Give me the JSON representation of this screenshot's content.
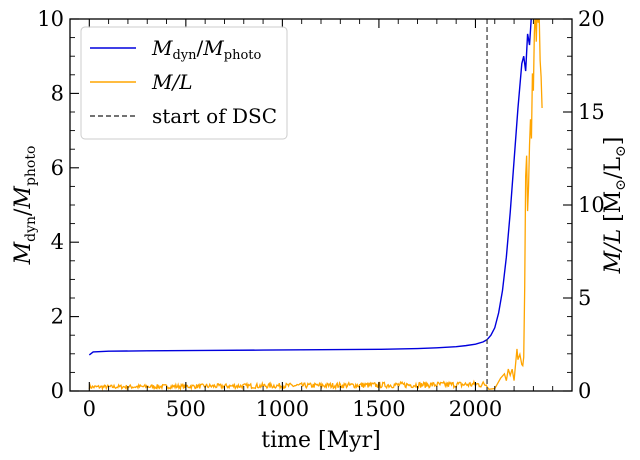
{
  "chart_data": {
    "type": "line",
    "title": "",
    "xlabel": "time [Myr]",
    "ylabel_left": {
      "base": "M",
      "sub": "dyn",
      "sep": "/",
      "base2": "M",
      "sub2": "photo"
    },
    "ylabel_right": {
      "base": "M/L",
      "unit": "[M",
      "unit_sub": "⊙",
      "unit_mid": "/L",
      "unit_sub2": "⊙",
      "unit_end": "]"
    },
    "xlim": [
      -100,
      2500
    ],
    "ylim_left": [
      0,
      10
    ],
    "ylim_right": [
      0,
      20
    ],
    "xticks": [
      0,
      500,
      1000,
      1500,
      2000
    ],
    "xtick_labels": [
      "0",
      "500",
      "1000",
      "1500",
      "2000"
    ],
    "yticks_left": [
      0,
      2,
      4,
      6,
      8,
      10
    ],
    "ytick_labels_left": [
      "0",
      "2",
      "4",
      "6",
      "8",
      "10"
    ],
    "yticks_right": [
      0,
      5,
      10,
      15,
      20
    ],
    "ytick_labels_right": [
      "0",
      "5",
      "10",
      "15",
      "20"
    ],
    "grid": false,
    "legend_position": "top-left",
    "series": [
      {
        "name": "M_dyn/M_photo",
        "legend": {
          "base": "M",
          "sub": "dyn",
          "sep": "/",
          "base2": "M",
          "sub2": "photo"
        },
        "axis": "left",
        "color": "#0000dd",
        "x": [
          0,
          20,
          60,
          100,
          300,
          600,
          900,
          1200,
          1500,
          1700,
          1800,
          1900,
          1950,
          2000,
          2040,
          2060,
          2080,
          2100,
          2120,
          2140,
          2160,
          2180,
          2200,
          2220,
          2240,
          2250,
          2260,
          2270,
          2280,
          2290,
          2300
        ],
        "values": [
          0.97,
          1.05,
          1.06,
          1.07,
          1.08,
          1.09,
          1.1,
          1.11,
          1.12,
          1.14,
          1.16,
          1.19,
          1.22,
          1.26,
          1.32,
          1.38,
          1.5,
          1.7,
          2.1,
          2.7,
          3.6,
          4.8,
          6.2,
          7.6,
          8.8,
          9.0,
          8.6,
          9.6,
          9.3,
          10.1,
          10.5
        ]
      },
      {
        "name": "M/L",
        "legend": {
          "text": "M/L"
        },
        "axis": "right",
        "color": "#ffa500",
        "noisy_until": 2060,
        "noise_base": 0.18,
        "noise_amp": 0.35,
        "x": [
          2070,
          2100,
          2130,
          2150,
          2160,
          2170,
          2180,
          2190,
          2200,
          2210,
          2215,
          2220,
          2230,
          2240,
          2245,
          2250,
          2255,
          2260,
          2265,
          2270,
          2275,
          2280,
          2285,
          2290,
          2295,
          2300,
          2305,
          2310,
          2315,
          2320,
          2325,
          2330,
          2335,
          2340,
          2345
        ],
        "values": [
          0.3,
          0.4,
          0.7,
          1.0,
          0.8,
          1.1,
          0.9,
          1.2,
          0.8,
          1.5,
          2.4,
          1.8,
          2.2,
          1.6,
          1.4,
          2.0,
          5.5,
          11.5,
          12.5,
          9.5,
          11.0,
          13.0,
          14.5,
          13.8,
          17.0,
          16.0,
          19.0,
          20.5,
          18.5,
          21.0,
          19.5,
          20.5,
          18.0,
          17.0,
          15.0
        ]
      }
    ],
    "vline": {
      "x": 2060,
      "label": "start of DSC",
      "color": "#444444",
      "style": "dashed"
    }
  }
}
